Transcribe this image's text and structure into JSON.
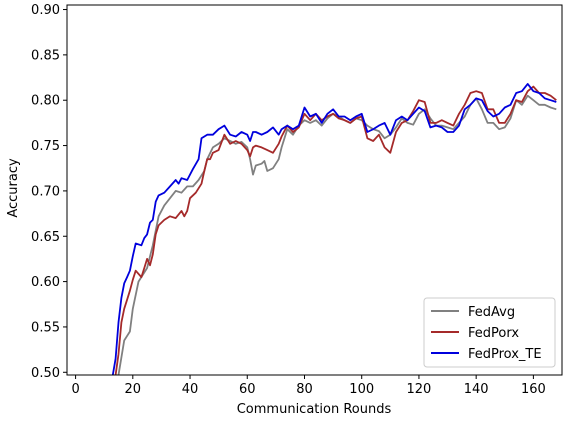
{
  "chart_data": {
    "type": "line",
    "xlabel": "Communication Rounds",
    "ylabel": "Accuracy",
    "xlim": [
      -3,
      170
    ],
    "ylim": [
      0.497,
      0.905
    ],
    "xticks": [
      0,
      20,
      40,
      60,
      80,
      100,
      120,
      140,
      160
    ],
    "yticks": [
      0.5,
      0.55,
      0.6,
      0.65,
      0.7,
      0.75,
      0.8,
      0.85,
      0.9
    ],
    "grid": false,
    "legend_position": "lower-right",
    "series": [
      {
        "name": "FedAvg",
        "color": "#808080",
        "points": [
          [
            15,
            0.497
          ],
          [
            17,
            0.535
          ],
          [
            19,
            0.545
          ],
          [
            20,
            0.57
          ],
          [
            22,
            0.6
          ],
          [
            25,
            0.615
          ],
          [
            27,
            0.64
          ],
          [
            29,
            0.672
          ],
          [
            31,
            0.684
          ],
          [
            33,
            0.692
          ],
          [
            35,
            0.7
          ],
          [
            37,
            0.698
          ],
          [
            39,
            0.705
          ],
          [
            41,
            0.705
          ],
          [
            43,
            0.712
          ],
          [
            45,
            0.722
          ],
          [
            46,
            0.735
          ],
          [
            48,
            0.748
          ],
          [
            50,
            0.752
          ],
          [
            52,
            0.758
          ],
          [
            54,
            0.755
          ],
          [
            56,
            0.752
          ],
          [
            58,
            0.754
          ],
          [
            60,
            0.748
          ],
          [
            61,
            0.735
          ],
          [
            62,
            0.718
          ],
          [
            63,
            0.728
          ],
          [
            65,
            0.73
          ],
          [
            66,
            0.733
          ],
          [
            67,
            0.722
          ],
          [
            69,
            0.725
          ],
          [
            71,
            0.735
          ],
          [
            72,
            0.748
          ],
          [
            74,
            0.768
          ],
          [
            76,
            0.762
          ],
          [
            78,
            0.772
          ],
          [
            80,
            0.778
          ],
          [
            82,
            0.775
          ],
          [
            84,
            0.778
          ],
          [
            86,
            0.772
          ],
          [
            88,
            0.78
          ],
          [
            90,
            0.785
          ],
          [
            92,
            0.782
          ],
          [
            94,
            0.778
          ],
          [
            96,
            0.775
          ],
          [
            98,
            0.78
          ],
          [
            100,
            0.778
          ],
          [
            102,
            0.772
          ],
          [
            104,
            0.768
          ],
          [
            106,
            0.766
          ],
          [
            108,
            0.758
          ],
          [
            110,
            0.762
          ],
          [
            112,
            0.77
          ],
          [
            114,
            0.78
          ],
          [
            116,
            0.775
          ],
          [
            118,
            0.773
          ],
          [
            120,
            0.785
          ],
          [
            122,
            0.79
          ],
          [
            124,
            0.78
          ],
          [
            126,
            0.772
          ],
          [
            128,
            0.772
          ],
          [
            130,
            0.77
          ],
          [
            132,
            0.768
          ],
          [
            134,
            0.775
          ],
          [
            136,
            0.782
          ],
          [
            138,
            0.795
          ],
          [
            140,
            0.802
          ],
          [
            142,
            0.79
          ],
          [
            144,
            0.775
          ],
          [
            146,
            0.775
          ],
          [
            148,
            0.768
          ],
          [
            150,
            0.77
          ],
          [
            152,
            0.78
          ],
          [
            154,
            0.8
          ],
          [
            156,
            0.795
          ],
          [
            158,
            0.805
          ],
          [
            160,
            0.8
          ],
          [
            162,
            0.795
          ],
          [
            164,
            0.795
          ],
          [
            166,
            0.792
          ],
          [
            168,
            0.79
          ]
        ]
      },
      {
        "name": "FedPorx",
        "color": "#a52a2a",
        "points": [
          [
            14,
            0.497
          ],
          [
            15,
            0.52
          ],
          [
            16,
            0.555
          ],
          [
            17,
            0.57
          ],
          [
            18,
            0.58
          ],
          [
            19,
            0.59
          ],
          [
            20,
            0.602
          ],
          [
            21,
            0.612
          ],
          [
            23,
            0.605
          ],
          [
            24,
            0.615
          ],
          [
            25,
            0.625
          ],
          [
            26,
            0.618
          ],
          [
            27,
            0.63
          ],
          [
            28,
            0.652
          ],
          [
            29,
            0.662
          ],
          [
            31,
            0.668
          ],
          [
            33,
            0.672
          ],
          [
            35,
            0.67
          ],
          [
            37,
            0.678
          ],
          [
            38,
            0.672
          ],
          [
            39,
            0.678
          ],
          [
            40,
            0.692
          ],
          [
            42,
            0.698
          ],
          [
            44,
            0.708
          ],
          [
            45,
            0.722
          ],
          [
            46,
            0.735
          ],
          [
            47,
            0.735
          ],
          [
            48,
            0.742
          ],
          [
            50,
            0.745
          ],
          [
            52,
            0.762
          ],
          [
            54,
            0.752
          ],
          [
            56,
            0.755
          ],
          [
            58,
            0.752
          ],
          [
            60,
            0.745
          ],
          [
            61,
            0.738
          ],
          [
            62,
            0.748
          ],
          [
            63,
            0.75
          ],
          [
            65,
            0.748
          ],
          [
            67,
            0.745
          ],
          [
            69,
            0.742
          ],
          [
            71,
            0.752
          ],
          [
            72,
            0.76
          ],
          [
            74,
            0.772
          ],
          [
            76,
            0.765
          ],
          [
            78,
            0.77
          ],
          [
            80,
            0.785
          ],
          [
            82,
            0.778
          ],
          [
            84,
            0.785
          ],
          [
            86,
            0.778
          ],
          [
            88,
            0.782
          ],
          [
            90,
            0.785
          ],
          [
            92,
            0.78
          ],
          [
            94,
            0.778
          ],
          [
            96,
            0.775
          ],
          [
            98,
            0.78
          ],
          [
            100,
            0.782
          ],
          [
            102,
            0.758
          ],
          [
            104,
            0.755
          ],
          [
            106,
            0.762
          ],
          [
            108,
            0.748
          ],
          [
            110,
            0.742
          ],
          [
            112,
            0.765
          ],
          [
            114,
            0.775
          ],
          [
            116,
            0.778
          ],
          [
            118,
            0.788
          ],
          [
            120,
            0.8
          ],
          [
            122,
            0.798
          ],
          [
            124,
            0.775
          ],
          [
            126,
            0.775
          ],
          [
            128,
            0.778
          ],
          [
            130,
            0.775
          ],
          [
            132,
            0.772
          ],
          [
            134,
            0.785
          ],
          [
            136,
            0.795
          ],
          [
            138,
            0.808
          ],
          [
            140,
            0.81
          ],
          [
            142,
            0.808
          ],
          [
            144,
            0.79
          ],
          [
            146,
            0.79
          ],
          [
            148,
            0.775
          ],
          [
            150,
            0.775
          ],
          [
            152,
            0.785
          ],
          [
            154,
            0.8
          ],
          [
            156,
            0.798
          ],
          [
            158,
            0.81
          ],
          [
            160,
            0.815
          ],
          [
            162,
            0.808
          ],
          [
            164,
            0.808
          ],
          [
            166,
            0.805
          ],
          [
            168,
            0.8
          ]
        ]
      },
      {
        "name": "FedProx_TE",
        "color": "#0000dd",
        "points": [
          [
            13,
            0.497
          ],
          [
            14,
            0.515
          ],
          [
            15,
            0.555
          ],
          [
            16,
            0.582
          ],
          [
            17,
            0.598
          ],
          [
            18,
            0.605
          ],
          [
            19,
            0.612
          ],
          [
            20,
            0.628
          ],
          [
            21,
            0.642
          ],
          [
            23,
            0.64
          ],
          [
            24,
            0.648
          ],
          [
            25,
            0.652
          ],
          [
            26,
            0.665
          ],
          [
            27,
            0.668
          ],
          [
            28,
            0.688
          ],
          [
            29,
            0.695
          ],
          [
            31,
            0.698
          ],
          [
            33,
            0.705
          ],
          [
            35,
            0.712
          ],
          [
            36,
            0.708
          ],
          [
            37,
            0.714
          ],
          [
            39,
            0.712
          ],
          [
            41,
            0.724
          ],
          [
            43,
            0.735
          ],
          [
            44,
            0.758
          ],
          [
            46,
            0.762
          ],
          [
            48,
            0.762
          ],
          [
            50,
            0.768
          ],
          [
            52,
            0.772
          ],
          [
            54,
            0.762
          ],
          [
            56,
            0.76
          ],
          [
            58,
            0.765
          ],
          [
            60,
            0.762
          ],
          [
            61,
            0.755
          ],
          [
            62,
            0.765
          ],
          [
            63,
            0.765
          ],
          [
            65,
            0.762
          ],
          [
            67,
            0.765
          ],
          [
            69,
            0.77
          ],
          [
            71,
            0.762
          ],
          [
            72,
            0.768
          ],
          [
            74,
            0.772
          ],
          [
            76,
            0.768
          ],
          [
            78,
            0.772
          ],
          [
            80,
            0.792
          ],
          [
            82,
            0.782
          ],
          [
            84,
            0.785
          ],
          [
            86,
            0.775
          ],
          [
            88,
            0.785
          ],
          [
            90,
            0.79
          ],
          [
            92,
            0.782
          ],
          [
            94,
            0.782
          ],
          [
            96,
            0.778
          ],
          [
            98,
            0.782
          ],
          [
            100,
            0.785
          ],
          [
            102,
            0.765
          ],
          [
            104,
            0.768
          ],
          [
            106,
            0.772
          ],
          [
            108,
            0.775
          ],
          [
            110,
            0.762
          ],
          [
            112,
            0.778
          ],
          [
            114,
            0.782
          ],
          [
            116,
            0.778
          ],
          [
            118,
            0.785
          ],
          [
            120,
            0.792
          ],
          [
            122,
            0.788
          ],
          [
            124,
            0.77
          ],
          [
            126,
            0.772
          ],
          [
            128,
            0.77
          ],
          [
            130,
            0.765
          ],
          [
            132,
            0.765
          ],
          [
            134,
            0.772
          ],
          [
            136,
            0.79
          ],
          [
            138,
            0.795
          ],
          [
            140,
            0.802
          ],
          [
            142,
            0.8
          ],
          [
            144,
            0.788
          ],
          [
            146,
            0.782
          ],
          [
            148,
            0.785
          ],
          [
            150,
            0.792
          ],
          [
            152,
            0.795
          ],
          [
            154,
            0.808
          ],
          [
            156,
            0.81
          ],
          [
            158,
            0.818
          ],
          [
            160,
            0.81
          ],
          [
            162,
            0.808
          ],
          [
            164,
            0.802
          ],
          [
            166,
            0.8
          ],
          [
            168,
            0.798
          ]
        ]
      }
    ]
  }
}
